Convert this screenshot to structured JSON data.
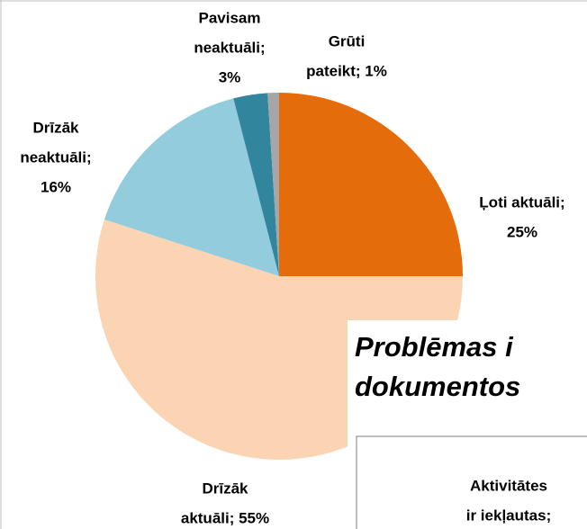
{
  "chart_data": {
    "type": "pie",
    "categories": [
      "Ļoti aktuāli",
      "Drīzāk aktuāli",
      "Drīzāk neaktuāli",
      "Pavisam neaktuāli",
      "Grūti pateikt"
    ],
    "labels": [
      [
        "Ļoti aktuāli;",
        "25%"
      ],
      [
        "Drīzāk",
        "aktuāli; 55%"
      ],
      [
        "Drīzāk",
        "neaktuāli;",
        "16%"
      ],
      [
        "Pavisam",
        "neaktuāli;",
        "3%"
      ],
      [
        "Grūti",
        "pateikt; 1%"
      ]
    ],
    "values": [
      25,
      55,
      16,
      3,
      1
    ],
    "colors": [
      "#e46c0a",
      "#fbd4b4",
      "#93cddd",
      "#31859c",
      "#a6a6a6"
    ]
  },
  "overlay": {
    "title_lines": [
      "Problēmas i",
      "dokumentos"
    ],
    "box_lines": [
      "Aktivitātes",
      "ir iekļautas;"
    ]
  }
}
